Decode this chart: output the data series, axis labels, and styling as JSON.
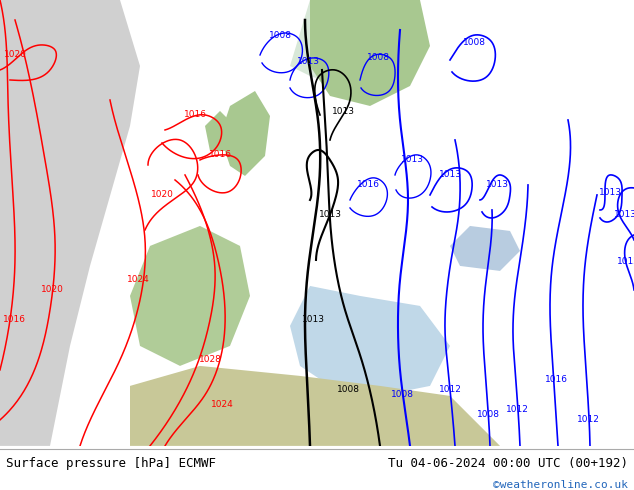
{
  "title_left": "Surface pressure [hPa] ECMWF",
  "title_right": "Tu 04-06-2024 00:00 UTC (00+192)",
  "credit": "©weatheronline.co.uk",
  "fig_width": 6.34,
  "fig_height": 4.9,
  "title_fontsize": 9.0,
  "credit_fontsize": 8,
  "credit_color": "#2266bb",
  "title_color": "#000000",
  "bottom_bg": "#ffffff",
  "map_green": "#b8d4a0",
  "map_gray": "#c8c8c8",
  "map_white": "#e8e8e8"
}
